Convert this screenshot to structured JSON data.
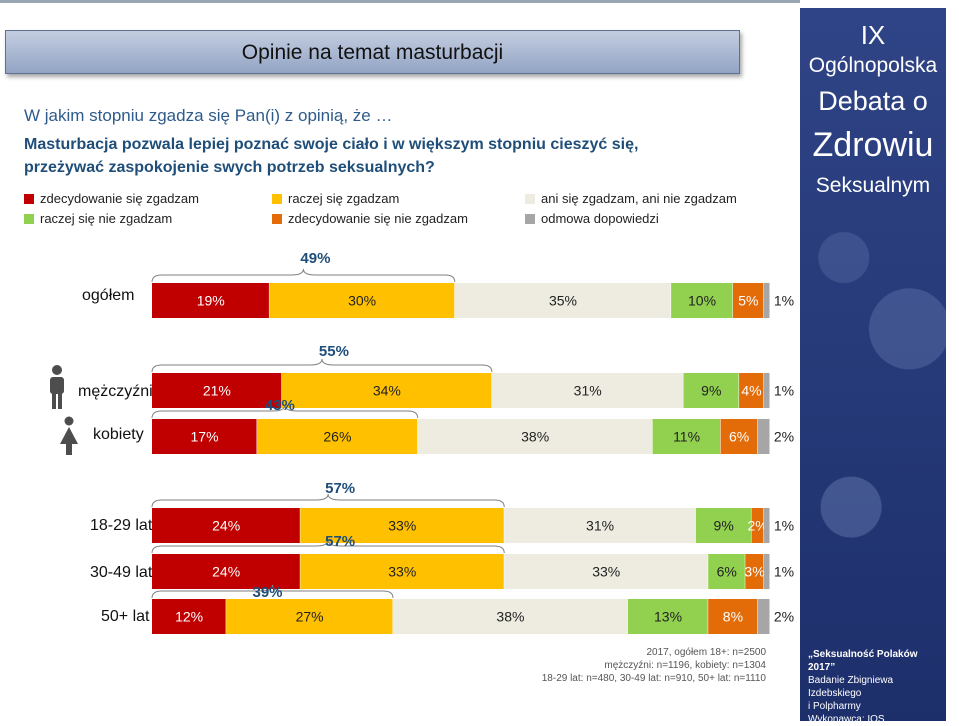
{
  "title": "Opinie na temat masturbacji",
  "question_intro": "W jakim stopniu zgadza się Pan(i) z opinią, że …",
  "question_statement": "Masturbacja  pozwala lepiej poznać swoje ciało i w większym stopniu cieszyć się, przeżywać zaspokojenie  swych potrzeb seksualnych?",
  "legend": [
    {
      "label": "zdecydowanie się zgadzam",
      "color": "#c00000"
    },
    {
      "label": "raczej się zgadzam",
      "color": "#ffc000"
    },
    {
      "label": "ani się zgadzam, ani nie zgadzam",
      "color": "#eeece1"
    },
    {
      "label": "raczej się nie zgadzam",
      "color": "#92d050"
    },
    {
      "label": "zdecydowanie się nie zgadzam",
      "color": "#e36c09"
    },
    {
      "label": "odmowa dopowiedzi",
      "color": "#a6a6a6"
    }
  ],
  "chart_data": {
    "type": "bar",
    "stacked": true,
    "orientation": "horizontal",
    "categories": [
      "ogółem",
      "mężczyźni",
      "kobiety",
      "18-29 lat",
      "30-49 lat",
      "50+ lat"
    ],
    "series": [
      {
        "name": "zdecydowanie się zgadzam",
        "values": [
          19,
          21,
          17,
          24,
          24,
          12
        ],
        "color": "#c00000"
      },
      {
        "name": "raczej się zgadzam",
        "values": [
          30,
          34,
          26,
          33,
          33,
          27
        ],
        "color": "#ffc000"
      },
      {
        "name": "ani się zgadzam, ani nie zgadzam",
        "values": [
          35,
          31,
          38,
          31,
          33,
          38
        ],
        "color": "#eeece1"
      },
      {
        "name": "raczej się nie zgadzam",
        "values": [
          10,
          9,
          11,
          9,
          6,
          13
        ],
        "color": "#92d050"
      },
      {
        "name": "zdecydowanie się nie zgadzam",
        "values": [
          5,
          4,
          6,
          2,
          3,
          8
        ],
        "color": "#e36c09"
      },
      {
        "name": "odmowa dopowiedzi",
        "values": [
          1,
          1,
          2,
          1,
          1,
          2
        ],
        "color": "#a6a6a6"
      }
    ],
    "value_labels": [
      [
        "19%",
        "30%",
        "35%",
        "10%",
        "5%",
        "1%"
      ],
      [
        "21%",
        "34%",
        "31%",
        "9%",
        "4%",
        "1%"
      ],
      [
        "17%",
        "26%",
        "38%",
        "11%",
        "6%",
        "2%"
      ],
      [
        "24%",
        "33%",
        "31%",
        "9%",
        "2%",
        "1%"
      ],
      [
        "24%",
        "33%",
        "33%",
        "6%",
        "3%",
        "1%"
      ],
      [
        "12%",
        "27%",
        "38%",
        "13%",
        "8%",
        "2%"
      ]
    ],
    "agree_totals": [
      "49%",
      "55%",
      "43%",
      "57%",
      "57%",
      "39%"
    ]
  },
  "sidebar": {
    "line1": "IX",
    "line2": "Ogólnopolska",
    "line3": "Debata o",
    "line4": "Zdrowiu",
    "line5": "Seksualnym",
    "footer_title": "„Seksualność Polaków 2017”",
    "footer_line1": "Badanie Zbigniewa Izdebskiego",
    "footer_line2": "i Polpharmy",
    "footer_line3": "Wykonawca: IQS"
  },
  "notes": {
    "line1": "2017, ogółem 18+: n=2500",
    "line2": "mężczyźni: n=1196, kobiety: n=1304",
    "line3": "18-29 lat: n=480, 30-49 lat: n=910, 50+ lat: n=1110"
  },
  "icons": {
    "male": "male-person-icon",
    "female": "female-person-icon"
  }
}
